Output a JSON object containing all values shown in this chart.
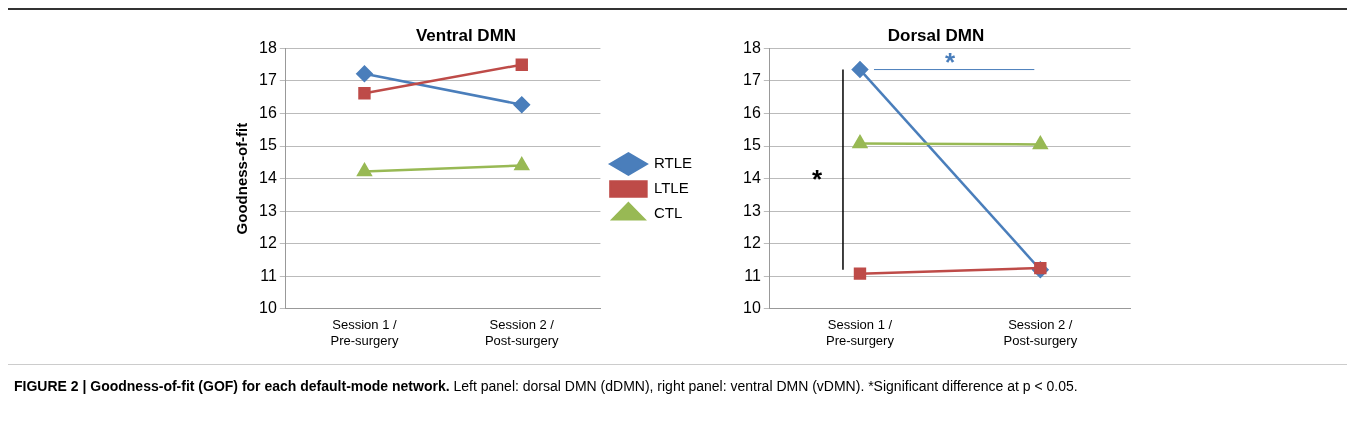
{
  "chart_data": [
    {
      "type": "line",
      "title": "Ventral DMN",
      "ylabel": "Goodness-of-fit",
      "categories": [
        "Session 1 / Pre-surgery",
        "Session 2 / Post-surgery"
      ],
      "ylim": [
        10,
        18
      ],
      "yticks": [
        10,
        11,
        12,
        13,
        14,
        15,
        16,
        17,
        18
      ],
      "grid": "y",
      "legend": "right",
      "series": [
        {
          "name": "RTLE",
          "color": "#4a7ebb",
          "marker": "diamond",
          "values": [
            17.22,
            16.27
          ]
        },
        {
          "name": "LTLE",
          "color": "#be4b48",
          "marker": "square",
          "values": [
            16.62,
            17.5
          ]
        },
        {
          "name": "CTL",
          "color": "#98b954",
          "marker": "triangle",
          "values": [
            14.22,
            14.4
          ]
        }
      ]
    },
    {
      "type": "line",
      "title": "Dorsal DMN",
      "categories": [
        "Session 1 / Pre-surgery",
        "Session 2 / Post-surgery"
      ],
      "ylim": [
        10,
        18
      ],
      "yticks": [
        10,
        11,
        12,
        13,
        14,
        15,
        16,
        17,
        18
      ],
      "grid": "y",
      "annotations": [
        "*",
        "*"
      ],
      "series": [
        {
          "color": "#4a7ebb",
          "marker": "diamond",
          "values": [
            17.35,
            11.2
          ]
        },
        {
          "color": "#be4b48",
          "marker": "square",
          "values": [
            11.08,
            11.25
          ]
        },
        {
          "color": "#98b954",
          "marker": "triangle",
          "values": [
            15.08,
            15.05
          ]
        }
      ]
    },
    {
      "type": "other",
      "title": "FIGURE 2 | Goodness-of-fit (GOF) for each default-mode network.",
      "annotations": [
        "Left panel: dorsal DMN (dDMN), right panel: ventral DMN (vDMN). *Significant difference at p < 0.05."
      ]
    }
  ]
}
